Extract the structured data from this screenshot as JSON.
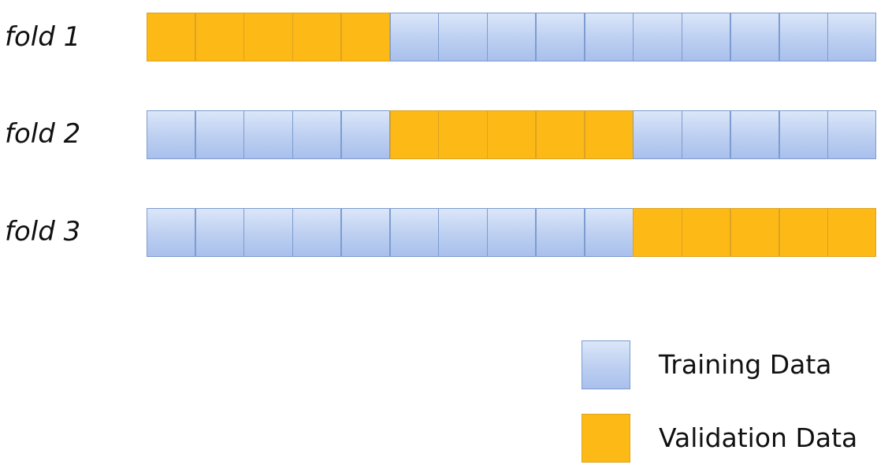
{
  "folds": [
    {
      "label": "fold 1",
      "cells": [
        "V",
        "V",
        "V",
        "V",
        "V",
        "T",
        "T",
        "T",
        "T",
        "T",
        "T",
        "T",
        "T",
        "T",
        "T"
      ]
    },
    {
      "label": "fold 2",
      "cells": [
        "T",
        "T",
        "T",
        "T",
        "T",
        "V",
        "V",
        "V",
        "V",
        "V",
        "T",
        "T",
        "T",
        "T",
        "T"
      ]
    },
    {
      "label": "fold 3",
      "cells": [
        "T",
        "T",
        "T",
        "T",
        "T",
        "T",
        "T",
        "T",
        "T",
        "T",
        "V",
        "V",
        "V",
        "V",
        "V"
      ]
    }
  ],
  "legend": {
    "training_label": "Training Data",
    "validation_label": "Validation Data"
  },
  "colors": {
    "training": "#bccff1",
    "training_border": "#7d9ccf",
    "validation": "#fdb916",
    "validation_border": "#dda322"
  }
}
